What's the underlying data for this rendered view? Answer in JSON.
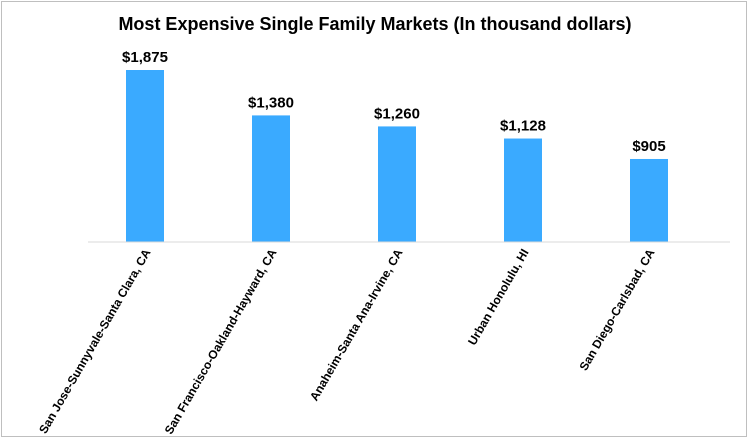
{
  "chart_data": {
    "type": "bar",
    "title": "Most Expensive Single Family Markets (In thousand dollars)",
    "categories": [
      "San Jose-Sunnyvale-Santa Clara, CA",
      "San Francisco-Oakland-Hayward, CA",
      "Anaheim-Santa Ana-Irvine, CA",
      "Urban Honolulu, HI",
      "San Diego-Carlsbad, CA"
    ],
    "values": [
      1875,
      1380,
      1260,
      1128,
      905
    ],
    "data_labels": [
      "$1,875",
      "$1,380",
      "$1,260",
      "$1,128",
      "$905"
    ],
    "xlabel": "",
    "ylabel": "",
    "ylim": [
      0,
      1875
    ],
    "grid": false,
    "legend": "none",
    "bar_color": "#3aaaff",
    "axis_color": "#d9d9d9"
  }
}
